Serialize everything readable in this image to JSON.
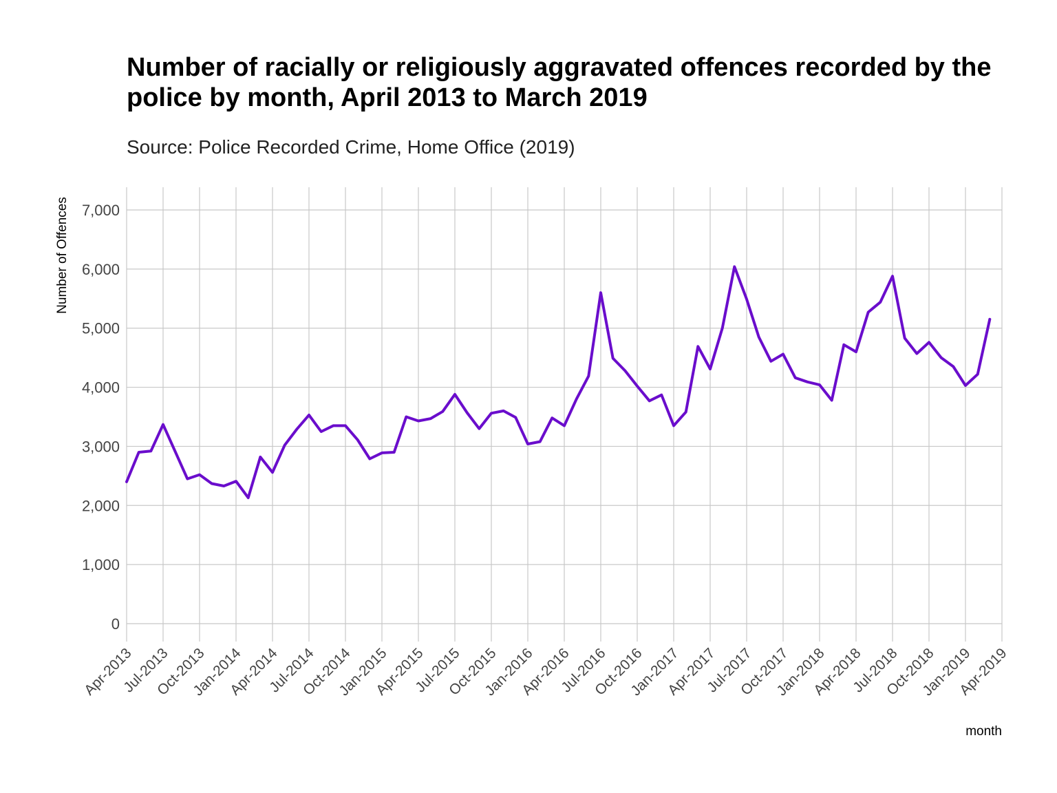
{
  "chart_data": {
    "type": "line",
    "title": "Number of racially or religiously aggravated offences recorded by the police by month, April 2013 to March 2019",
    "subtitle": "Source: Police Recorded Crime, Home Office (2019)",
    "xlabel": "month",
    "ylabel": "Number of Offences",
    "ylim": [
      0,
      7000
    ],
    "yticks": [
      0,
      1000,
      2000,
      3000,
      4000,
      5000,
      6000,
      7000
    ],
    "ytick_labels": [
      "0",
      "1,000",
      "2,000",
      "3,000",
      "4,000",
      "5,000",
      "6,000",
      "7,000"
    ],
    "xlim": [
      "2013-04",
      "2019-04"
    ],
    "xtick_labels": [
      "Apr-2013",
      "Jul-2013",
      "Oct-2013",
      "Jan-2014",
      "Apr-2014",
      "Jul-2014",
      "Oct-2014",
      "Jan-2015",
      "Apr-2015",
      "Jul-2015",
      "Oct-2015",
      "Jan-2016",
      "Apr-2016",
      "Jul-2016",
      "Oct-2016",
      "Jan-2017",
      "Apr-2017",
      "Jul-2017",
      "Oct-2017",
      "Jan-2018",
      "Apr-2018",
      "Jul-2018",
      "Oct-2018",
      "Jan-2019",
      "Apr-2019"
    ],
    "grid": true,
    "line_color": "#6a0dcc",
    "x": [
      "2013-04",
      "2013-05",
      "2013-06",
      "2013-07",
      "2013-08",
      "2013-09",
      "2013-10",
      "2013-11",
      "2013-12",
      "2014-01",
      "2014-02",
      "2014-03",
      "2014-04",
      "2014-05",
      "2014-06",
      "2014-07",
      "2014-08",
      "2014-09",
      "2014-10",
      "2014-11",
      "2014-12",
      "2015-01",
      "2015-02",
      "2015-03",
      "2015-04",
      "2015-05",
      "2015-06",
      "2015-07",
      "2015-08",
      "2015-09",
      "2015-10",
      "2015-11",
      "2015-12",
      "2016-01",
      "2016-02",
      "2016-03",
      "2016-04",
      "2016-05",
      "2016-06",
      "2016-07",
      "2016-08",
      "2016-09",
      "2016-10",
      "2016-11",
      "2016-12",
      "2017-01",
      "2017-02",
      "2017-03",
      "2017-04",
      "2017-05",
      "2017-06",
      "2017-07",
      "2017-08",
      "2017-09",
      "2017-10",
      "2017-11",
      "2017-12",
      "2018-01",
      "2018-02",
      "2018-03",
      "2018-04",
      "2018-05",
      "2018-06",
      "2018-07",
      "2018-08",
      "2018-09",
      "2018-10",
      "2018-11",
      "2018-12",
      "2019-01",
      "2019-02",
      "2019-03"
    ],
    "values": [
      2400,
      2900,
      2920,
      3370,
      2910,
      2450,
      2520,
      2370,
      2330,
      2410,
      2130,
      2820,
      2560,
      3020,
      3290,
      3530,
      3250,
      3350,
      3350,
      3110,
      2790,
      2890,
      2900,
      3500,
      3430,
      3470,
      3590,
      3880,
      3570,
      3300,
      3560,
      3600,
      3490,
      3040,
      3080,
      3480,
      3350,
      3800,
      4190,
      5600,
      4490,
      4280,
      4020,
      3770,
      3870,
      3350,
      3580,
      4690,
      4310,
      5000,
      6040,
      5490,
      4850,
      4440,
      4560,
      4160,
      4090,
      4040,
      3780,
      4720,
      4600,
      5270,
      5440,
      5880,
      4830,
      4570,
      4760,
      4500,
      4350,
      4030,
      4220,
      5150
    ]
  }
}
